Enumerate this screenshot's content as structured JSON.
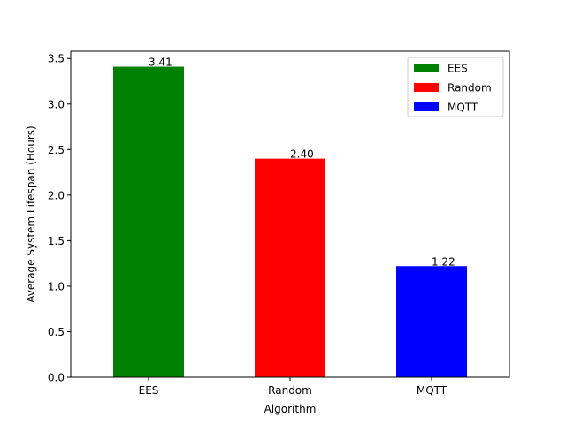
{
  "chart_data": {
    "type": "bar",
    "title": "",
    "xlabel": "Algorithm",
    "ylabel": "Average System Lifespan (Hours)",
    "categories": [
      "EES",
      "Random",
      "MQTT"
    ],
    "values": [
      3.41,
      2.4,
      1.22
    ],
    "data_labels": [
      "3.41",
      "2.40",
      "1.22"
    ],
    "colors": [
      "#008000",
      "#ff0000",
      "#0000ff"
    ],
    "ylim": [
      0,
      3.58
    ],
    "yticks": [
      0.0,
      0.5,
      1.0,
      1.5,
      2.0,
      2.5,
      3.0,
      3.5
    ],
    "ytick_labels": [
      "0.0",
      "0.5",
      "1.0",
      "1.5",
      "2.0",
      "2.5",
      "3.0",
      "3.5"
    ],
    "grid": false,
    "legend_position": "top-right",
    "legend": [
      {
        "label": "EES",
        "color": "#008000"
      },
      {
        "label": "Random",
        "color": "#ff0000"
      },
      {
        "label": "MQTT",
        "color": "#0000ff"
      }
    ]
  }
}
